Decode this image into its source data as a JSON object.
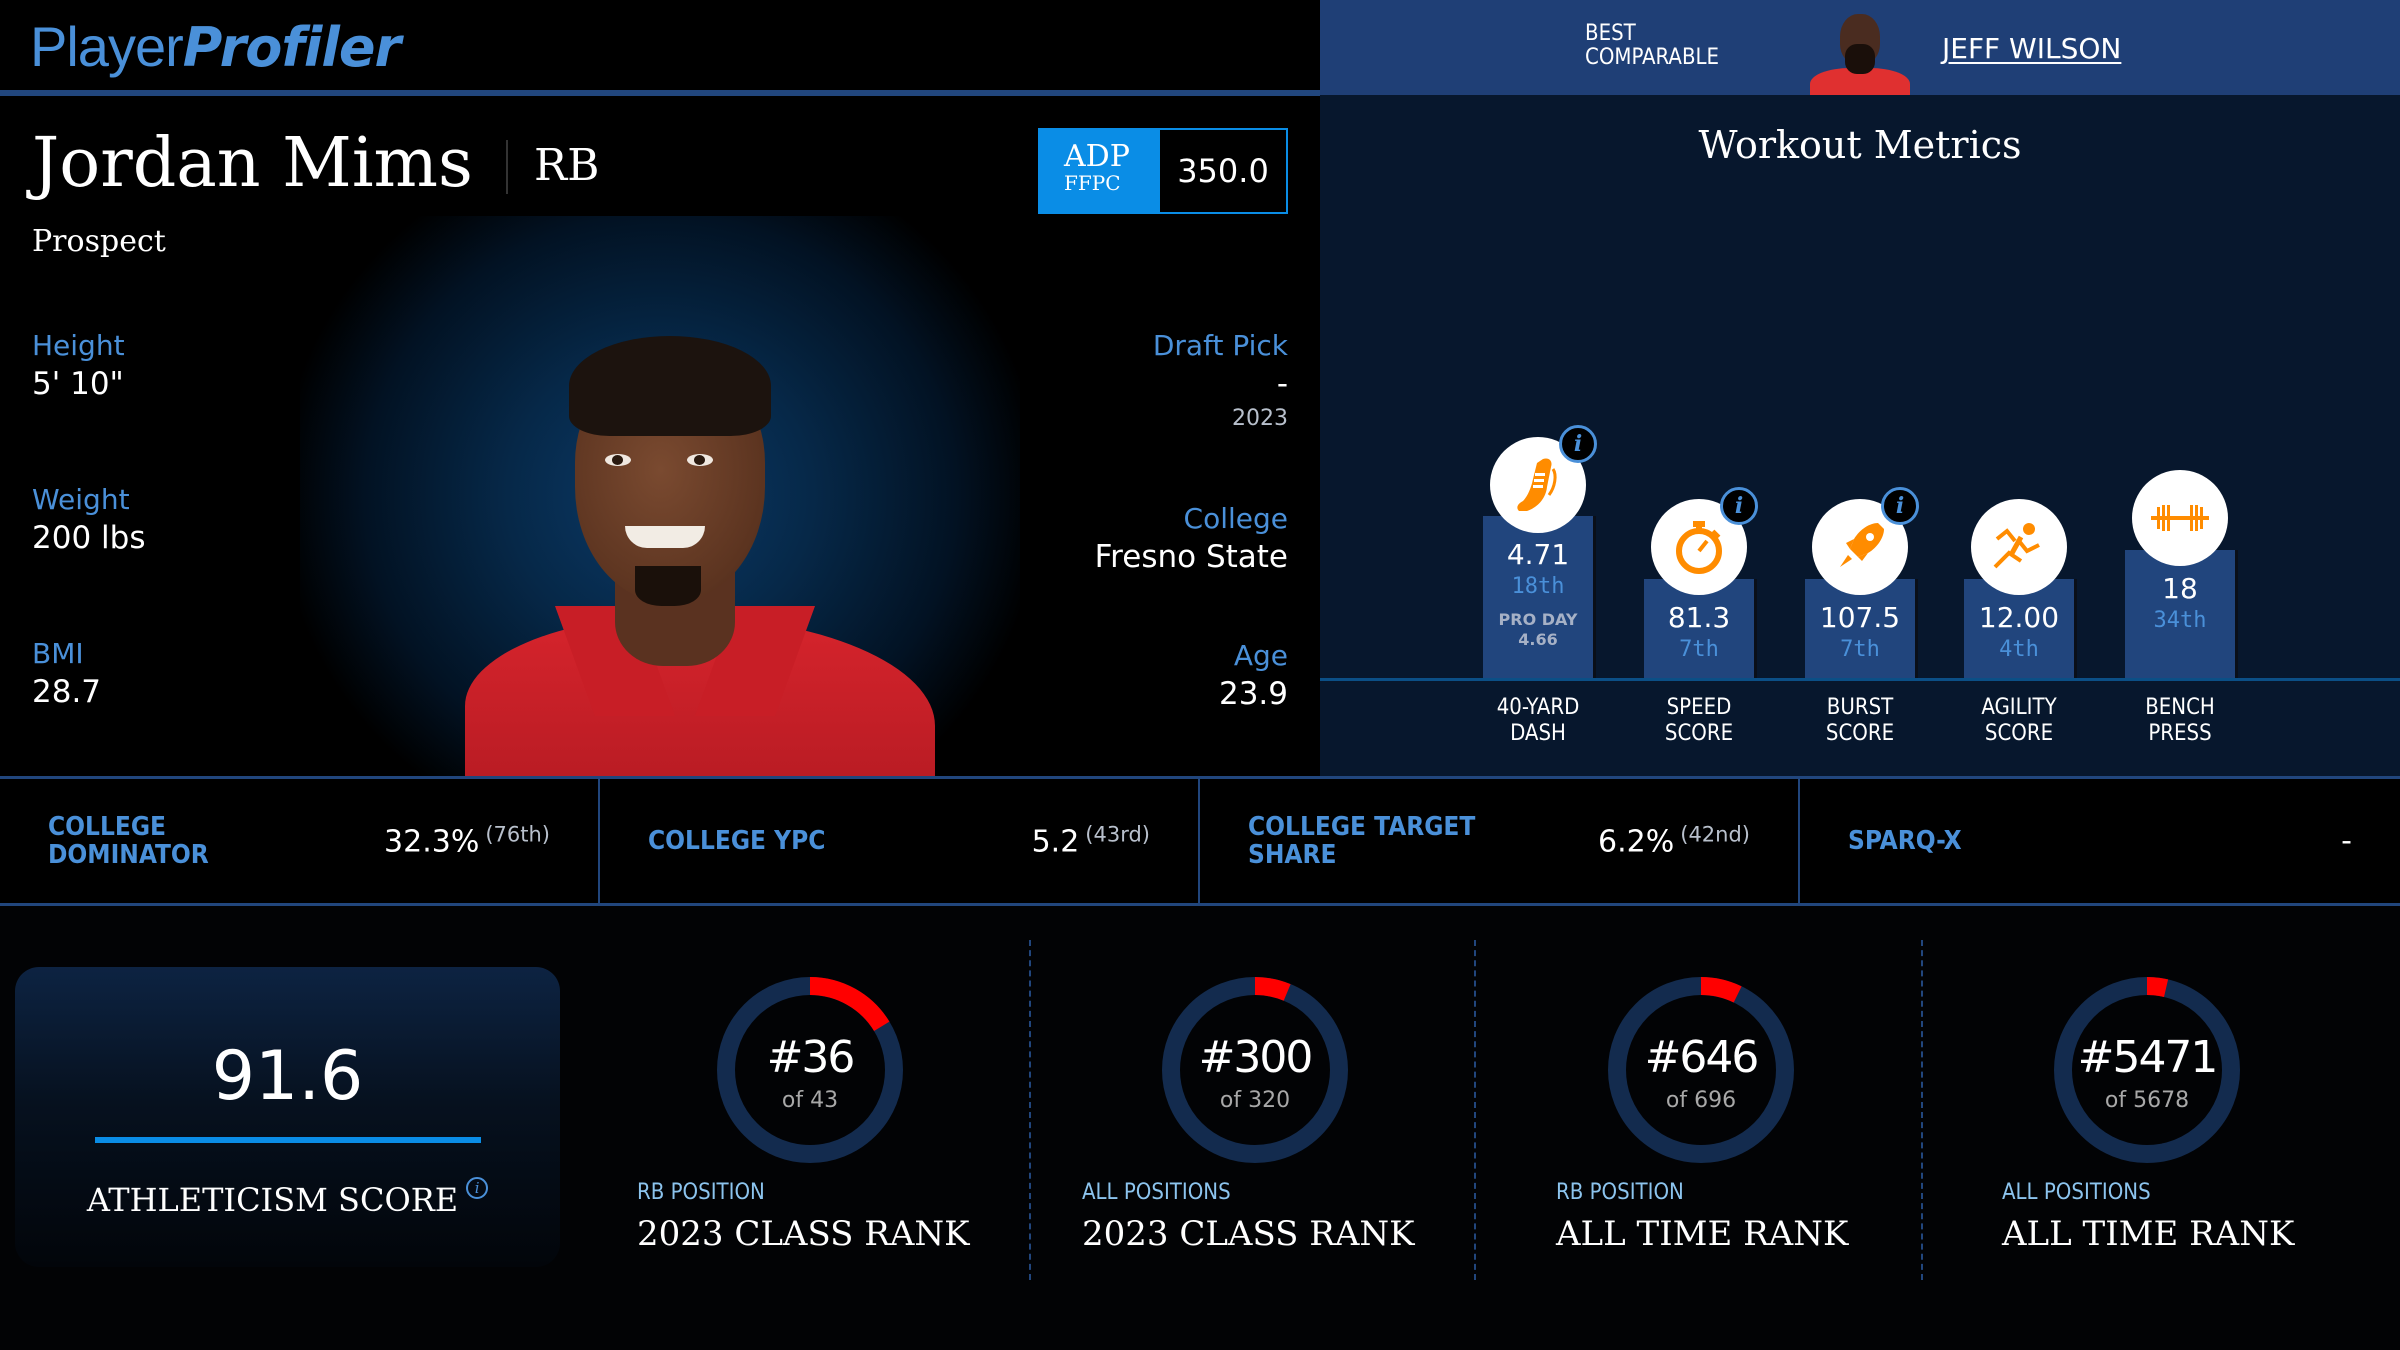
{
  "header": {
    "logo": {
      "part1": "Player",
      "part2": "Profiler"
    },
    "best_comparable": {
      "label_line1": "BEST",
      "label_line2": "COMPARABLE",
      "name": "JEFF WILSON"
    }
  },
  "player": {
    "name": "Jordan Mims",
    "position": "RB",
    "status": "Prospect",
    "adp": {
      "label": "ADP",
      "source": "FFPC",
      "value": "350.0"
    },
    "left_stats": [
      {
        "label": "Height",
        "value": "5' 10\""
      },
      {
        "label": "Weight",
        "value": "200 lbs"
      },
      {
        "label": "BMI",
        "value": "28.7"
      }
    ],
    "right_stats": {
      "draft_pick": {
        "label": "Draft Pick",
        "value": "-",
        "year": "2023"
      },
      "college": {
        "label": "College",
        "value": "Fresno State"
      },
      "age": {
        "label": "Age",
        "value": "23.9"
      }
    }
  },
  "workout": {
    "title": "Workout Metrics",
    "metrics": [
      {
        "name_line1": "40-YARD",
        "name_line2": "DASH",
        "value": "4.71",
        "rank": "18th",
        "pro_day_label": "PRO DAY",
        "pro_day_value": "4.66",
        "icon": "shoe-icon",
        "has_info": true
      },
      {
        "name_line1": "SPEED",
        "name_line2": "SCORE",
        "value": "81.3",
        "rank": "7th",
        "icon": "stopwatch-icon",
        "has_info": true
      },
      {
        "name_line1": "BURST",
        "name_line2": "SCORE",
        "value": "107.5",
        "rank": "7th",
        "icon": "rocket-icon",
        "has_info": true
      },
      {
        "name_line1": "AGILITY",
        "name_line2": "SCORE",
        "value": "12.00",
        "rank": "4th",
        "icon": "runner-icon",
        "has_info": false
      },
      {
        "name_line1": "BENCH",
        "name_line2": "PRESS",
        "value": "18",
        "rank": "34th",
        "icon": "barbell-icon",
        "has_info": false
      }
    ],
    "info_glyph": "i"
  },
  "college_stats": [
    {
      "label": "COLLEGE DOMINATOR",
      "value": "32.3%",
      "rank": "(76th)"
    },
    {
      "label": "COLLEGE YPC",
      "value": "5.2",
      "rank": "(43rd)"
    },
    {
      "label": "COLLEGE TARGET SHARE",
      "value": "6.2%",
      "rank": "(42nd)"
    },
    {
      "label": "SPARQ-X",
      "value": "-",
      "rank": ""
    }
  ],
  "athleticism": {
    "value": "91.6",
    "label": "ATHLETICISM SCORE",
    "info_glyph": "i"
  },
  "ranks": [
    {
      "rank": "#36",
      "of": "of 43",
      "subtitle": "RB POSITION",
      "title": "2023 CLASS RANK",
      "rank_num": 36,
      "total": 43
    },
    {
      "rank": "#300",
      "of": "of 320",
      "subtitle": "ALL POSITIONS",
      "title": "2023 CLASS RANK",
      "rank_num": 300,
      "total": 320
    },
    {
      "rank": "#646",
      "of": "of 696",
      "subtitle": "RB POSITION",
      "title": "ALL TIME RANK",
      "rank_num": 646,
      "total": 696
    },
    {
      "rank": "#5471",
      "of": "of 5678",
      "subtitle": "ALL POSITIONS",
      "title": "ALL TIME RANK",
      "rank_num": 5471,
      "total": 5678
    }
  ],
  "colors": {
    "accent_blue": "#4a90d9",
    "adp_blue": "#0a8de6",
    "header_blue": "#1f3f76",
    "donut_track": "#132b4e",
    "donut_fill": "#ff0000",
    "icon_orange": "#ff8c00"
  }
}
